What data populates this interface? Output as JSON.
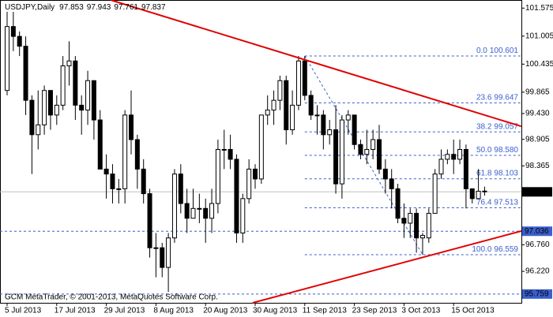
{
  "chart_data": {
    "type": "candlestick",
    "symbol": "USDJPY,Daily",
    "header_ohlc": [
      97.853,
      97.943,
      97.761,
      97.837
    ],
    "footer": "GCM MetaTrader, © 2001-2013, MetaQuotes Software Corp.",
    "categories": [
      "5 Jul 2013",
      null,
      null,
      null,
      null,
      null,
      null,
      null,
      "17 Jul 2013",
      null,
      null,
      null,
      null,
      null,
      null,
      null,
      "29 Jul 2013",
      null,
      null,
      null,
      null,
      null,
      null,
      null,
      "8 Aug 2013",
      null,
      null,
      null,
      null,
      null,
      null,
      null,
      "20 Aug 2013",
      null,
      null,
      null,
      null,
      null,
      null,
      null,
      "30 Aug 2013",
      null,
      null,
      null,
      null,
      null,
      null,
      null,
      "11 Sep 2013",
      null,
      null,
      null,
      null,
      null,
      null,
      null,
      "23 Sep 2013",
      null,
      null,
      null,
      null,
      null,
      null,
      null,
      "3 Oct 2013",
      null,
      null,
      null,
      null,
      null,
      null,
      null,
      "15 Oct 2013",
      null,
      null,
      null,
      null,
      null
    ],
    "open": [
      99.9,
      101.2,
      101.0,
      100.8,
      99.7,
      99.0,
      99.2,
      99.9,
      99.4,
      99.6,
      100.4,
      100.5,
      99.6,
      99.5,
      100.1,
      99.3,
      98.3,
      98.2,
      97.9,
      97.9,
      99.4,
      98.9,
      98.3,
      97.8,
      96.7,
      96.7,
      96.3,
      96.9,
      98.2,
      97.6,
      97.3,
      97.5,
      97.5,
      97.3,
      97.6,
      98.7,
      98.7,
      98.5,
      97.0,
      97.7,
      98.3,
      98.1,
      99.4,
      99.5,
      99.7,
      100.1,
      99.1,
      99.6,
      100.5,
      99.8,
      99.4,
      99.4,
      99.0,
      99.1,
      98.0,
      99.3,
      99.4,
      98.8,
      98.6,
      98.7,
      98.9,
      98.3,
      98.1,
      97.9,
      97.3,
      97.2,
      97.4,
      96.9,
      96.9,
      97.4,
      98.2,
      98.5,
      98.6,
      98.5,
      98.7,
      97.9,
      97.7,
      97.853
    ],
    "high": [
      101.5,
      101.5,
      101.1,
      101.0,
      99.8,
      99.9,
      100.0,
      99.9,
      99.8,
      100.6,
      100.9,
      100.6,
      99.8,
      100.3,
      100.1,
      99.5,
      98.6,
      98.4,
      98.1,
      99.5,
      99.9,
      99.0,
      98.5,
      97.9,
      97.0,
      96.8,
      97.0,
      98.3,
      98.4,
      97.9,
      97.9,
      97.8,
      97.7,
      97.9,
      98.9,
      99.1,
      99.0,
      98.6,
      97.8,
      98.5,
      98.4,
      99.4,
      99.8,
      99.9,
      100.2,
      100.2,
      99.9,
      100.6,
      100.601,
      99.9,
      99.6,
      99.5,
      99.3,
      99.6,
      99.4,
      99.5,
      99.4,
      98.9,
      99.1,
      99.1,
      99.2,
      98.5,
      98.3,
      98.0,
      97.6,
      97.5,
      97.5,
      97.0,
      97.5,
      98.3,
      98.7,
      98.7,
      98.9,
      98.9,
      98.8,
      97.9,
      98.3,
      97.943
    ],
    "low": [
      99.8,
      100.7,
      100.6,
      99.4,
      98.2,
      98.7,
      99.0,
      99.1,
      99.2,
      99.5,
      100.0,
      99.3,
      99.0,
      99.2,
      98.9,
      98.3,
      97.7,
      97.6,
      97.6,
      97.6,
      98.6,
      97.9,
      97.6,
      96.5,
      96.1,
      96.1,
      95.8,
      96.8,
      97.4,
      97.0,
      97.3,
      97.2,
      96.8,
      97.0,
      97.4,
      98.3,
      98.3,
      96.8,
      96.8,
      97.6,
      97.9,
      98.0,
      99.2,
      99.2,
      99.5,
      98.8,
      99.0,
      99.5,
      99.7,
      99.3,
      99.0,
      98.7,
      98.8,
      97.8,
      97.7,
      99.0,
      98.7,
      98.5,
      98.4,
      98.5,
      98.2,
      97.8,
      97.5,
      97.2,
      96.9,
      96.9,
      96.6,
      96.559,
      96.8,
      97.4,
      98.1,
      98.4,
      98.2,
      98.4,
      97.5,
      97.6,
      97.7,
      97.761
    ],
    "close": [
      101.2,
      101.0,
      100.8,
      99.7,
      99.0,
      99.2,
      99.9,
      99.4,
      99.6,
      100.4,
      100.5,
      99.6,
      99.5,
      100.1,
      99.3,
      98.3,
      98.2,
      97.9,
      97.9,
      99.4,
      98.9,
      98.3,
      97.8,
      96.7,
      96.7,
      96.3,
      96.9,
      98.2,
      97.6,
      97.3,
      97.5,
      97.5,
      97.3,
      97.6,
      98.7,
      98.7,
      98.5,
      97.0,
      97.7,
      98.3,
      98.1,
      99.4,
      99.5,
      99.7,
      100.1,
      99.1,
      99.6,
      100.5,
      99.8,
      99.4,
      99.4,
      99.0,
      99.1,
      98.0,
      99.3,
      99.4,
      98.8,
      98.6,
      98.7,
      98.9,
      98.3,
      98.1,
      97.9,
      97.3,
      97.2,
      97.4,
      96.9,
      96.95,
      97.4,
      98.2,
      98.5,
      98.6,
      98.5,
      98.7,
      97.9,
      97.7,
      97.85,
      97.837
    ],
    "ylim": [
      95.58,
      101.74
    ],
    "yticks": [
      101.575,
      101.005,
      100.435,
      99.865,
      {
        "value": 99.43,
        "label": "99.430"
      },
      98.905,
      98.365,
      {
        "value": 96.76,
        "label": "96.760"
      },
      {
        "value": 96.22,
        "label": "96.220"
      }
    ],
    "levels": [
      {
        "price": 97.837,
        "color": "#000000",
        "style": "solid"
      },
      {
        "price": 97.036,
        "color": "#3a5fcd",
        "style": "dashed"
      },
      {
        "price": 95.759,
        "color": "#3a5fcd",
        "style": "dashed"
      }
    ],
    "fibonacci": {
      "anchor_x": [
        48,
        67
      ],
      "color": "#3a5fcd",
      "levels": [
        {
          "level": {
            "value": 0,
            "label": "0.0"
          },
          "price": 100.601
        },
        {
          "level": 23.6,
          "price": 99.647
        },
        {
          "level": 38.2,
          "price": 99.057
        },
        {
          "level": {
            "value": 50,
            "label": "50.0"
          },
          "price": {
            "value": 98.58,
            "label": "98.580"
          }
        },
        {
          "level": 61.8,
          "price": 98.103
        },
        {
          "level": 76.4,
          "price": 97.513
        },
        {
          "level": {
            "value": 100,
            "label": "100.0"
          },
          "price": 96.559
        }
      ]
    },
    "trendlines": [
      {
        "color": "#e00000",
        "x": [
          16.7,
          82.9
        ],
        "y": [
          101.74,
          99.17
        ]
      },
      {
        "color": "#e00000",
        "x": [
          39.6,
          82.9
        ],
        "y": [
          95.58,
          97.04
        ]
      }
    ]
  }
}
